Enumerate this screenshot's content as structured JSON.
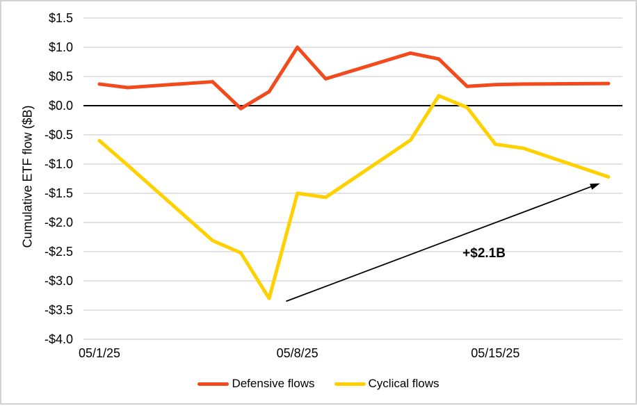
{
  "chart_data": {
    "type": "line",
    "title": "",
    "ylabel": "Cumulative ETF flow ($B)",
    "xlabel": "",
    "ylim": [
      -4.0,
      1.5
    ],
    "y_tick_step": 0.5,
    "y_ticks": [
      {
        "value": 1.5,
        "label": "$1.5"
      },
      {
        "value": 1.0,
        "label": "$1.0"
      },
      {
        "value": 0.5,
        "label": "$0.5"
      },
      {
        "value": 0.0,
        "label": "$0.0"
      },
      {
        "value": -0.5,
        "label": "-$0.5"
      },
      {
        "value": -1.0,
        "label": "-$1.0"
      },
      {
        "value": -1.5,
        "label": "-$1.5"
      },
      {
        "value": -2.0,
        "label": "-$2.0"
      },
      {
        "value": -2.5,
        "label": "-$2.5"
      },
      {
        "value": -3.0,
        "label": "-$3.0"
      },
      {
        "value": -3.5,
        "label": "-$3.5"
      },
      {
        "value": -4.0,
        "label": "-$4.0"
      }
    ],
    "x_axis": {
      "unit": "date (May 2025, business days)",
      "range_days": [
        1,
        19
      ],
      "tick_labels": [
        {
          "day": 1,
          "label": "05/1/25"
        },
        {
          "day": 8,
          "label": "05/8/25"
        },
        {
          "day": 15,
          "label": "05/15/25"
        }
      ]
    },
    "x_days": [
      1,
      2,
      5,
      6,
      7,
      8,
      9,
      12,
      13,
      14,
      15,
      16,
      19
    ],
    "series": [
      {
        "name": "Defensive flows",
        "color": "#F2491D",
        "values": [
          0.37,
          0.31,
          0.41,
          -0.05,
          0.24,
          1.0,
          0.46,
          0.9,
          0.8,
          0.33,
          0.36,
          0.37,
          0.38
        ]
      },
      {
        "name": "Cyclical flows",
        "color": "#FFD100",
        "values": [
          -0.6,
          -1.02,
          -2.31,
          -2.52,
          -3.3,
          -1.5,
          -1.57,
          -0.59,
          0.17,
          -0.03,
          -0.66,
          -0.73,
          -1.22
        ]
      }
    ],
    "grid": true,
    "zero_line": true,
    "legend_position": "bottom",
    "annotation": {
      "label": "+$2.1B",
      "from": {
        "day": 7.6,
        "value": -3.35
      },
      "to": {
        "day": 18.7,
        "value": -1.33
      },
      "label_pos": {
        "day": 14.6,
        "value": -2.54
      }
    }
  },
  "colors": {
    "grid": "#D9D9D9",
    "zero_line": "#000000",
    "text": "#000000",
    "arrow": "#000000",
    "frame": "#D2D2D2",
    "background": "#FFFFFF"
  }
}
